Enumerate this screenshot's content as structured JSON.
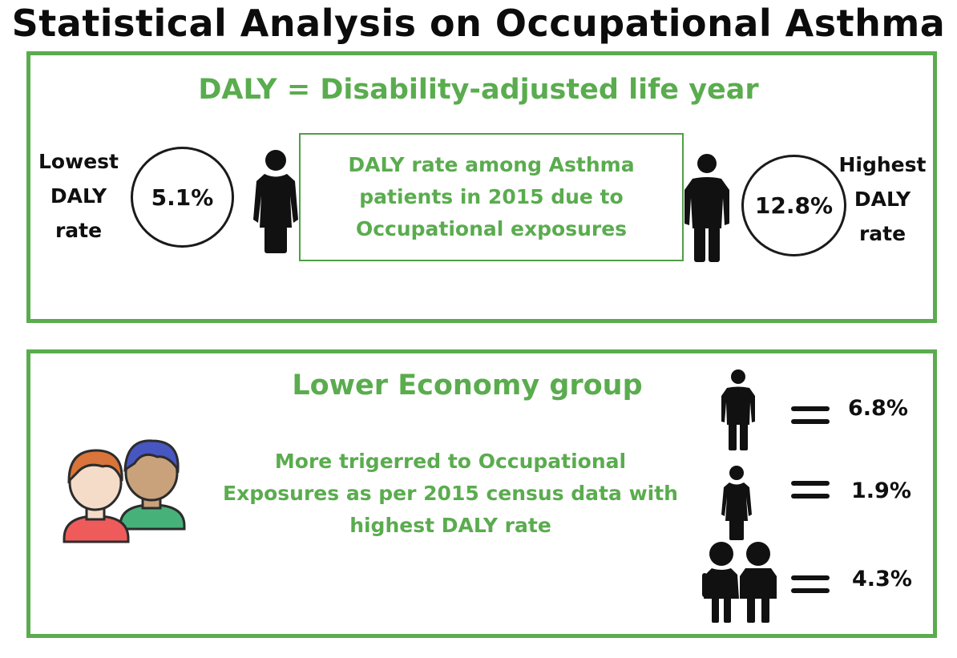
{
  "title": "Statistical Analysis on Occupational Asthma",
  "top_panel": {
    "heading": "DALY = Disability-adjusted life year",
    "lowest": {
      "label_lines": [
        "Lowest",
        "DALY",
        "rate"
      ],
      "value": "5.1%",
      "icon": "female-person-icon"
    },
    "highest": {
      "label_lines": [
        "Highest",
        "DALY",
        "rate"
      ],
      "value": "12.8%",
      "icon": "male-person-icon"
    },
    "info_lines": [
      "DALY rate among Asthma",
      "patients in 2015 due to",
      "Occupational exposures"
    ]
  },
  "bottom_panel": {
    "heading": "Lower Economy group",
    "description_lines": [
      "More trigerred to  Occupational",
      "Exposures  as per 2015 census data with",
      "highest DALY rate"
    ],
    "illustration": "two-people-avatars-icon",
    "stats": [
      {
        "icon": "male-person-icon",
        "value": "6.8%"
      },
      {
        "icon": "female-person-icon",
        "value": "1.9%"
      },
      {
        "icon": "children-icon",
        "value": "4.3%"
      }
    ]
  },
  "colors": {
    "accent_green": "#5aac4e",
    "text_dark": "#111111"
  }
}
